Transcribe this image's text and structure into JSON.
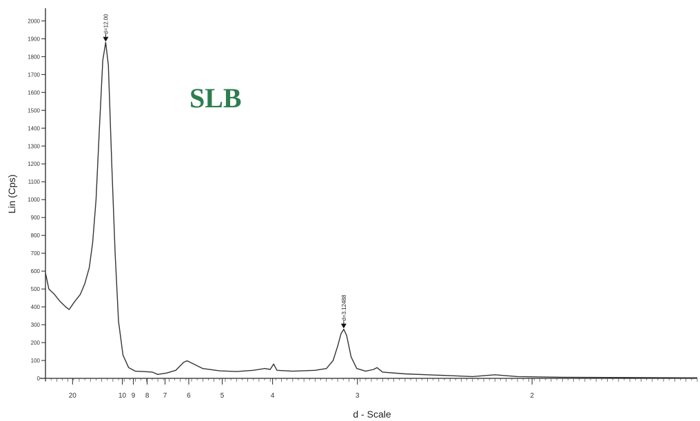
{
  "chart_data": {
    "type": "line",
    "ylabel": "Lin (Cps)",
    "xlabel": "d - Scale",
    "ylim": [
      0,
      2000
    ],
    "yticks": [
      0,
      100,
      200,
      300,
      400,
      500,
      600,
      700,
      800,
      900,
      1000,
      1100,
      1200,
      1300,
      1400,
      1500,
      1600,
      1700,
      1800,
      1900,
      2000
    ],
    "x_axis": "2-theta (deg) plotted, labeled by d-spacing",
    "x_range_2theta": [
      2,
      40
    ],
    "xticks": [
      {
        "d": "20",
        "two_theta": 4.41
      },
      {
        "d": "10",
        "two_theta": 8.84
      },
      {
        "d": "9",
        "two_theta": 9.82
      },
      {
        "d": "8",
        "two_theta": 11.05
      },
      {
        "d": "7",
        "two_theta": 12.64
      },
      {
        "d": "6",
        "two_theta": 14.75
      },
      {
        "d": "5",
        "two_theta": 17.73
      },
      {
        "d": "4",
        "two_theta": 22.21
      },
      {
        "d": "3",
        "two_theta": 29.76
      },
      {
        "d": "2",
        "two_theta": 45.3
      }
    ],
    "annotation": "SLB",
    "peaks": [
      {
        "label": "d=12.00",
        "two_theta": 7.36,
        "y": 1880
      },
      {
        "label": "d=3.12488",
        "two_theta": 28.54,
        "y": 275
      }
    ],
    "series": [
      {
        "points": [
          [
            2.0,
            590
          ],
          [
            2.3,
            500
          ],
          [
            2.8,
            470
          ],
          [
            3.3,
            430
          ],
          [
            3.8,
            400
          ],
          [
            4.1,
            385
          ],
          [
            4.6,
            430
          ],
          [
            5.1,
            470
          ],
          [
            5.5,
            530
          ],
          [
            5.9,
            620
          ],
          [
            6.2,
            760
          ],
          [
            6.5,
            1000
          ],
          [
            6.8,
            1400
          ],
          [
            7.1,
            1780
          ],
          [
            7.36,
            1880
          ],
          [
            7.6,
            1750
          ],
          [
            7.9,
            1200
          ],
          [
            8.2,
            700
          ],
          [
            8.5,
            320
          ],
          [
            8.9,
            130
          ],
          [
            9.4,
            60
          ],
          [
            10.0,
            40
          ],
          [
            10.7,
            38
          ],
          [
            11.5,
            35
          ],
          [
            12.0,
            22
          ],
          [
            12.8,
            30
          ],
          [
            13.6,
            45
          ],
          [
            14.3,
            90
          ],
          [
            14.6,
            98
          ],
          [
            15.2,
            80
          ],
          [
            16.0,
            55
          ],
          [
            17.5,
            42
          ],
          [
            19.0,
            38
          ],
          [
            20.5,
            45
          ],
          [
            21.5,
            55
          ],
          [
            22.0,
            50
          ],
          [
            22.3,
            80
          ],
          [
            22.6,
            45
          ],
          [
            24.0,
            40
          ],
          [
            26.0,
            45
          ],
          [
            27.0,
            55
          ],
          [
            27.6,
            100
          ],
          [
            28.0,
            180
          ],
          [
            28.3,
            250
          ],
          [
            28.54,
            275
          ],
          [
            28.8,
            240
          ],
          [
            29.2,
            120
          ],
          [
            29.7,
            55
          ],
          [
            30.5,
            40
          ],
          [
            31.2,
            50
          ],
          [
            31.5,
            60
          ],
          [
            32.0,
            35
          ],
          [
            34.0,
            25
          ],
          [
            36.0,
            20
          ],
          [
            38.0,
            15
          ],
          [
            40.0,
            10
          ],
          [
            42.0,
            20
          ],
          [
            44.0,
            10
          ],
          [
            46.0,
            8
          ],
          [
            48.0,
            6
          ],
          [
            52.0,
            5
          ],
          [
            56.0,
            4
          ],
          [
            59.0,
            3
          ],
          [
            60.0,
            3
          ]
        ]
      }
    ]
  }
}
